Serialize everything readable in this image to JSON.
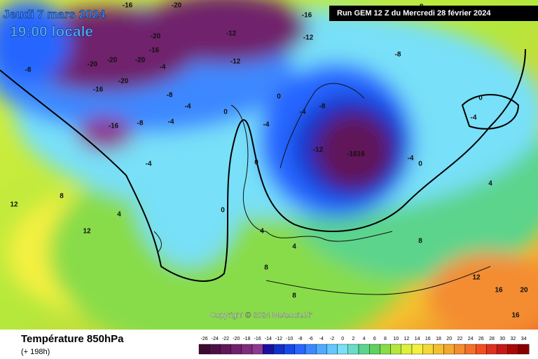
{
  "header": {
    "date": "Jeudi 7 mars 2024",
    "time": "19:00 locale",
    "run": "Run GEM 12 Z du Mercredi 28 février 2024"
  },
  "copyright": "Copyright © 2024 Meteociel.fr",
  "footer": {
    "title": "Température 850hPa",
    "lead": "(+ 198h)"
  },
  "scale": {
    "values": [
      -26,
      -24,
      -22,
      -20,
      -18,
      -16,
      -14,
      -12,
      -10,
      -8,
      -6,
      -4,
      -2,
      0,
      2,
      4,
      6,
      8,
      10,
      12,
      14,
      16,
      18,
      20,
      22,
      24,
      26,
      28,
      30,
      32,
      34
    ],
    "colors": [
      "#3c0a30",
      "#4e0f44",
      "#601658",
      "#70206c",
      "#7e2c7e",
      "#8c3a92",
      "#1a10a0",
      "#1030c8",
      "#1848e8",
      "#2866ff",
      "#3c88ff",
      "#50aaff",
      "#64c8ff",
      "#78e0f8",
      "#6cdcc8",
      "#5cd48c",
      "#60d060",
      "#88dc48",
      "#b4e83c",
      "#dcf03c",
      "#f4f040",
      "#f4d838",
      "#f4c030",
      "#f4a830",
      "#f48c30",
      "#f47028",
      "#f05020",
      "#e03020",
      "#c81818",
      "#a80808",
      "#880000"
    ]
  },
  "map": {
    "labels": [
      "-20",
      "-16",
      "-16",
      "-12",
      "-20",
      "-20",
      "-20",
      "-16",
      "-20",
      "-16",
      "-8",
      "-16",
      "-20",
      "-8",
      "-12",
      "-4",
      "-8",
      "-4",
      "-4",
      "-4",
      "0",
      "0",
      "-4",
      "-8",
      "-12",
      "-1616",
      "-12",
      "-8",
      "0",
      "-4",
      "-4",
      "0",
      "0",
      "4",
      "4",
      "8",
      "8",
      "12",
      "12",
      "8",
      "4",
      "16",
      "20",
      "16",
      "12",
      "8",
      "4",
      "0",
      "-4",
      "-8"
    ]
  }
}
